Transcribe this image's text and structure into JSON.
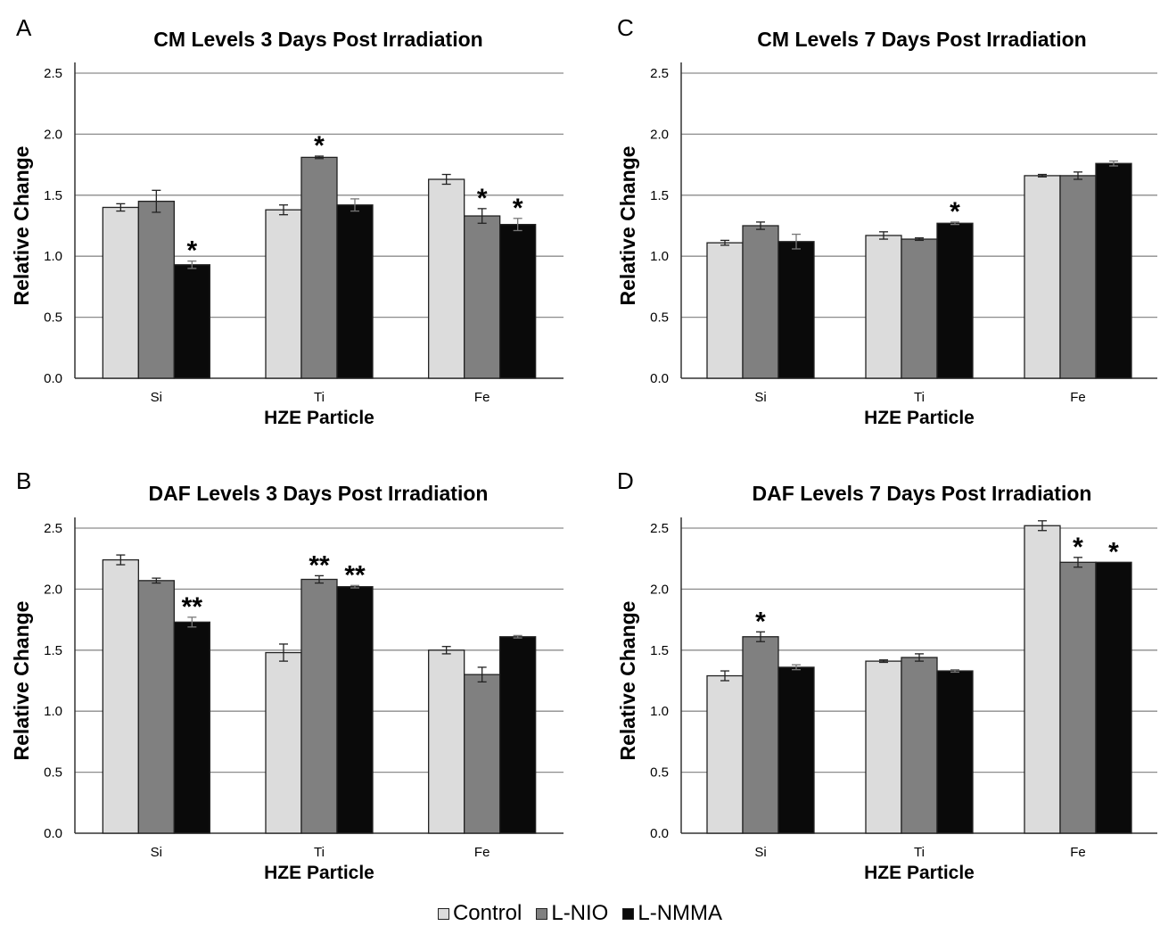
{
  "colors": {
    "Control": "#dcdcdc",
    "L-NIO": "#808080",
    "L-NMMA": "#0a0a0a",
    "grid": "#8c8c8c"
  },
  "legend": [
    {
      "name": "Control",
      "label": "Control"
    },
    {
      "name": "L-NIO",
      "label": "L-NIO"
    },
    {
      "name": "L-NMMA",
      "label": "L-NMMA"
    }
  ],
  "chart_data": [
    {
      "panel": "A",
      "type": "bar",
      "title": "CM Levels 3 Days Post Irradiation",
      "xlabel": "HZE Particle",
      "ylabel": "Relative Change",
      "ylim": [
        0,
        2.5
      ],
      "yticks": [
        "0.0",
        "0.5",
        "1.0",
        "1.5",
        "2.0",
        "2.5"
      ],
      "grid": true,
      "categories": [
        "Si",
        "Ti",
        "Fe"
      ],
      "series": [
        {
          "name": "Control",
          "values": [
            1.4,
            1.38,
            1.63
          ],
          "errors": [
            0.03,
            0.04,
            0.04
          ]
        },
        {
          "name": "L-NIO",
          "values": [
            1.45,
            1.81,
            1.33
          ],
          "errors": [
            0.09,
            0.01,
            0.06
          ]
        },
        {
          "name": "L-NMMA",
          "values": [
            0.93,
            1.42,
            1.26
          ],
          "errors": [
            0.03,
            0.05,
            0.05
          ]
        }
      ],
      "annotations": [
        {
          "category": "Si",
          "series": "L-NMMA",
          "text": "*"
        },
        {
          "category": "Ti",
          "series": "L-NIO",
          "text": "*"
        },
        {
          "category": "Fe",
          "series": "L-NIO",
          "text": "*"
        },
        {
          "category": "Fe",
          "series": "L-NMMA",
          "text": "*"
        }
      ]
    },
    {
      "panel": "C",
      "type": "bar",
      "title": "CM Levels 7 Days Post Irradiation",
      "xlabel": "HZE Particle",
      "ylabel": "Relative Change",
      "ylim": [
        0,
        2.5
      ],
      "yticks": [
        "0.0",
        "0.5",
        "1.0",
        "1.5",
        "2.0",
        "2.5"
      ],
      "grid": true,
      "categories": [
        "Si",
        "Ti",
        "Fe"
      ],
      "series": [
        {
          "name": "Control",
          "values": [
            1.11,
            1.17,
            1.66
          ],
          "errors": [
            0.02,
            0.03,
            0.01
          ]
        },
        {
          "name": "L-NIO",
          "values": [
            1.25,
            1.14,
            1.66
          ],
          "errors": [
            0.03,
            0.01,
            0.03
          ]
        },
        {
          "name": "L-NMMA",
          "values": [
            1.12,
            1.27,
            1.76
          ],
          "errors": [
            0.06,
            0.01,
            0.02
          ]
        }
      ],
      "annotations": [
        {
          "category": "Ti",
          "series": "L-NMMA",
          "text": "*"
        }
      ]
    },
    {
      "panel": "B",
      "type": "bar",
      "title": "DAF Levels 3 Days Post Irradiation",
      "xlabel": "HZE Particle",
      "ylabel": "Relative Change",
      "ylim": [
        0,
        2.5
      ],
      "yticks": [
        "0.0",
        "0.5",
        "1.0",
        "1.5",
        "2.0",
        "2.5"
      ],
      "grid": true,
      "categories": [
        "Si",
        "Ti",
        "Fe"
      ],
      "series": [
        {
          "name": "Control",
          "values": [
            2.24,
            1.48,
            1.5
          ],
          "errors": [
            0.04,
            0.07,
            0.03
          ]
        },
        {
          "name": "L-NIO",
          "values": [
            2.07,
            2.08,
            1.3
          ],
          "errors": [
            0.02,
            0.03,
            0.06
          ]
        },
        {
          "name": "L-NMMA",
          "values": [
            1.73,
            2.02,
            1.61
          ],
          "errors": [
            0.04,
            0.01,
            0.01
          ]
        }
      ],
      "annotations": [
        {
          "category": "Si",
          "series": "L-NMMA",
          "text": "**"
        },
        {
          "category": "Ti",
          "series": "L-NIO",
          "text": "**"
        },
        {
          "category": "Ti",
          "series": "L-NMMA",
          "text": "**"
        }
      ]
    },
    {
      "panel": "D",
      "type": "bar",
      "title": "DAF Levels 7 Days Post Irradiation",
      "xlabel": "HZE Particle",
      "ylabel": "Relative Change",
      "ylim": [
        0,
        2.5
      ],
      "yticks": [
        "0.0",
        "0.5",
        "1.0",
        "1.5",
        "2.0",
        "2.5"
      ],
      "grid": true,
      "categories": [
        "Si",
        "Ti",
        "Fe"
      ],
      "series": [
        {
          "name": "Control",
          "values": [
            1.29,
            1.41,
            2.52
          ],
          "errors": [
            0.04,
            0.01,
            0.04
          ]
        },
        {
          "name": "L-NIO",
          "values": [
            1.61,
            1.44,
            2.22
          ],
          "errors": [
            0.04,
            0.03,
            0.04
          ]
        },
        {
          "name": "L-NMMA",
          "values": [
            1.36,
            1.33,
            2.22
          ],
          "errors": [
            0.02,
            0.01,
            0.0
          ]
        }
      ],
      "annotations": [
        {
          "category": "Si",
          "series": "L-NIO",
          "text": "*"
        },
        {
          "category": "Fe",
          "series": "L-NIO",
          "text": "*"
        },
        {
          "category": "Fe",
          "series": "L-NMMA",
          "text": "*"
        }
      ]
    }
  ]
}
